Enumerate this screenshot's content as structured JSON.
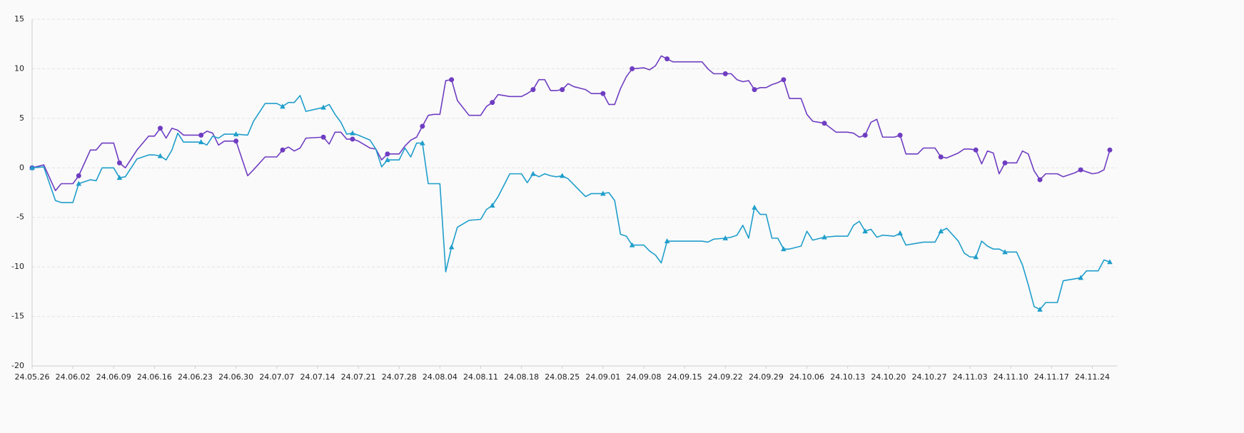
{
  "chart_data": {
    "type": "line",
    "x": [
      "24.05.26",
      "24.05.28",
      "24.05.30",
      "24.05.31",
      "24.06.02",
      "24.06.03",
      "24.06.05",
      "24.06.06",
      "24.06.07",
      "24.06.09",
      "24.06.10",
      "24.06.11",
      "24.06.13",
      "24.06.15",
      "24.06.16",
      "24.06.17",
      "24.06.18",
      "24.06.19",
      "24.06.20",
      "24.06.21",
      "24.06.24",
      "24.06.25",
      "24.06.26",
      "24.06.27",
      "24.06.28",
      "24.06.30",
      "24.07.02",
      "24.07.03",
      "24.07.05",
      "24.07.07",
      "24.07.08",
      "24.07.09",
      "24.07.10",
      "24.07.11",
      "24.07.12",
      "24.07.15",
      "24.07.16",
      "24.07.17",
      "24.07.18",
      "24.07.19",
      "24.07.20",
      "24.07.21",
      "24.07.23",
      "24.07.24",
      "24.07.25",
      "24.07.26",
      "24.07.28",
      "24.07.29",
      "24.07.30",
      "24.07.31",
      "24.08.01",
      "24.08.02",
      "24.08.03",
      "24.08.04",
      "24.08.05",
      "24.08.06",
      "24.08.07",
      "24.08.09",
      "24.08.11",
      "24.08.12",
      "24.08.13",
      "24.08.14",
      "24.08.16",
      "24.08.18",
      "24.08.19",
      "24.08.20",
      "24.08.21",
      "24.08.22",
      "24.08.23",
      "24.08.24",
      "24.08.25",
      "24.08.26",
      "24.08.27",
      "24.08.29",
      "24.08.30",
      "24.09.01",
      "24.09.02",
      "24.09.03",
      "24.09.04",
      "24.09.05",
      "24.09.06",
      "24.09.08",
      "24.09.09",
      "24.09.10",
      "24.09.11",
      "24.09.12",
      "24.09.13",
      "24.09.18",
      "24.09.19",
      "24.09.20",
      "24.09.22",
      "24.09.23",
      "24.09.24",
      "24.09.25",
      "24.09.26",
      "24.09.27",
      "24.09.28",
      "24.09.29",
      "24.09.30",
      "24.10.01",
      "24.10.02",
      "24.10.03",
      "24.10.05",
      "24.10.06",
      "24.10.07",
      "24.10.09",
      "24.10.11",
      "24.10.13",
      "24.10.14",
      "24.10.15",
      "24.10.16",
      "24.10.17",
      "24.10.18",
      "24.10.19",
      "24.10.21",
      "24.10.22",
      "24.10.23",
      "24.10.25",
      "24.10.26",
      "24.10.28",
      "24.10.29",
      "24.10.30",
      "24.11.01",
      "24.11.02",
      "24.11.03",
      "24.11.04",
      "24.11.05",
      "24.11.06",
      "24.11.07",
      "24.11.08",
      "24.11.09",
      "24.11.11",
      "24.11.12",
      "24.11.13",
      "24.11.14",
      "24.11.15",
      "24.11.16",
      "24.11.18",
      "24.11.19",
      "24.11.21",
      "24.11.22",
      "24.11.23",
      "24.11.24",
      "24.11.25",
      "24.11.26",
      "24.11.27"
    ],
    "series": [
      {
        "color": "#6f3dc2",
        "marker": "circle",
        "values": [
          0,
          0.3,
          -2.3,
          -1.6,
          -1.6,
          -0.8,
          1.8,
          1.8,
          2.5,
          2.5,
          0.5,
          0,
          1.8,
          3.2,
          3.2,
          4,
          3,
          4,
          3.8,
          3.3,
          3.3,
          3.7,
          3.5,
          2.3,
          2.7,
          2.7,
          -0.8,
          -0.2,
          1.1,
          1.1,
          1.8,
          2.1,
          1.7,
          2,
          3,
          3.1,
          2.4,
          3.6,
          3.6,
          2.9,
          2.9,
          2.7,
          2,
          1.9,
          0.8,
          1.4,
          1.4,
          2.2,
          2.8,
          3.1,
          4.2,
          5.3,
          5.4,
          5.4,
          8.8,
          8.9,
          6.8,
          5.3,
          5.3,
          6.2,
          6.6,
          7.4,
          7.2,
          7.2,
          7.5,
          7.9,
          8.9,
          8.9,
          7.8,
          7.8,
          7.9,
          8.5,
          8.2,
          7.9,
          7.5,
          7.5,
          6.4,
          6.4,
          8,
          9.2,
          10,
          10.1,
          9.9,
          10.3,
          11.3,
          11,
          10.7,
          10.7,
          10,
          9.5,
          9.5,
          9.5,
          8.9,
          8.7,
          8.8,
          7.9,
          8.1,
          8.1,
          8.4,
          8.6,
          8.9,
          7,
          7,
          5.4,
          4.7,
          4.5,
          3.6,
          3.6,
          3.5,
          3.1,
          3.3,
          4.6,
          4.9,
          3.1,
          3.1,
          3.3,
          1.4,
          1.4,
          2,
          2,
          1.1,
          1,
          1.5,
          1.9,
          1.9,
          1.8,
          0.4,
          1.7,
          1.5,
          -0.6,
          0.5,
          0.5,
          1.7,
          1.4,
          -0.3,
          -1.2,
          -0.6,
          -0.6,
          -0.9,
          -0.5,
          -0.2,
          -0.4,
          -0.6,
          -0.5,
          -0.2,
          1.8
        ]
      },
      {
        "color": "#1f9ecb",
        "marker": "triangle",
        "values": [
          0,
          0.1,
          -3.3,
          -3.5,
          -3.5,
          -1.6,
          -1.2,
          -1.3,
          0,
          0,
          -1,
          -0.9,
          0.9,
          1.3,
          1.3,
          1.2,
          0.8,
          1.8,
          3.5,
          2.6,
          2.6,
          2.3,
          3.2,
          3,
          3.4,
          3.4,
          3.3,
          4.7,
          6.5,
          6.5,
          6.2,
          6.6,
          6.6,
          7.3,
          5.7,
          6.1,
          6.4,
          5.4,
          4.6,
          3.4,
          3.5,
          3.3,
          2.8,
          1.9,
          0.1,
          0.8,
          0.8,
          2,
          1.1,
          2.5,
          2.5,
          -1.6,
          -1.6,
          -1.6,
          -10.5,
          -8,
          -6,
          -5.3,
          -5.2,
          -4.2,
          -3.8,
          -2.9,
          -0.6,
          -0.6,
          -1.5,
          -0.6,
          -0.9,
          -0.6,
          -0.8,
          -0.9,
          -0.8,
          -1.1,
          -1.7,
          -2.9,
          -2.6,
          -2.6,
          -2.5,
          -3.3,
          -6.7,
          -6.9,
          -7.8,
          -7.8,
          -8.4,
          -8.8,
          -9.6,
          -7.4,
          -7.4,
          -7.4,
          -7.5,
          -7.2,
          -7.1,
          -7,
          -6.8,
          -5.8,
          -7.1,
          -4,
          -4.7,
          -4.7,
          -7.1,
          -7.1,
          -8.2,
          -8.2,
          -7.9,
          -6.4,
          -7.3,
          -7,
          -6.9,
          -6.9,
          -5.8,
          -5.4,
          -6.4,
          -6.2,
          -7,
          -6.8,
          -6.9,
          -6.6,
          -7.8,
          -7.6,
          -7.5,
          -7.5,
          -6.4,
          -6.1,
          -7.4,
          -8.6,
          -9,
          -9,
          -7.4,
          -7.9,
          -8.2,
          -8.2,
          -8.5,
          -8.5,
          -9.8,
          -11.8,
          -14,
          -14.3,
          -13.6,
          -13.6,
          -11.4,
          -11.2,
          -11.1,
          -10.4,
          -10.4,
          -10.4,
          -9.3,
          -9.5
        ]
      }
    ],
    "xlim": [
      "24.05.26",
      "24.11.27"
    ],
    "xticks": [
      "24.05.26",
      "24.06.02",
      "24.06.09",
      "24.06.16",
      "24.06.23",
      "24.06.30",
      "24.07.07",
      "24.07.14",
      "24.07.21",
      "24.07.28",
      "24.08.04",
      "24.08.11",
      "24.08.18",
      "24.08.25",
      "24.09.01",
      "24.09.08",
      "24.09.15",
      "24.09.22",
      "24.09.29",
      "24.10.06",
      "24.10.13",
      "24.10.20",
      "24.10.27",
      "24.11.03",
      "24.11.10",
      "24.11.17",
      "24.11.24"
    ],
    "ylim": [
      -20,
      15
    ],
    "yticks": [
      -20,
      -15,
      -10,
      -5,
      0,
      5,
      10,
      15
    ],
    "grid": true
  }
}
